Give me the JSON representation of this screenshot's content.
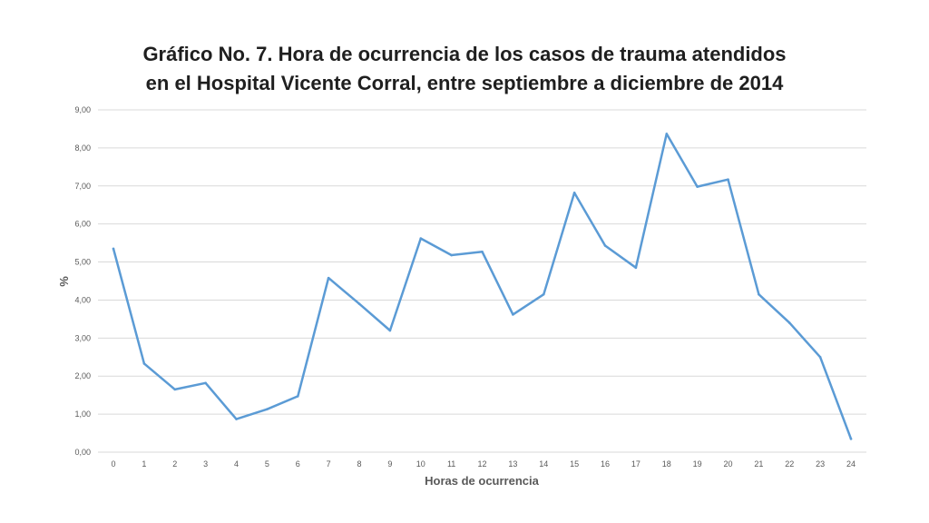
{
  "chart_data": {
    "type": "line",
    "title_lines": [
      "Gráfico No. 7. Hora de ocurrencia de los casos de trauma atendidos",
      "en el Hospital Vicente Corral, entre septiembre a diciembre de 2014"
    ],
    "xlabel": "Horas de ocurrencia",
    "ylabel": "%",
    "x": [
      0,
      1,
      2,
      3,
      4,
      5,
      6,
      7,
      8,
      9,
      10,
      11,
      12,
      13,
      14,
      15,
      16,
      17,
      18,
      19,
      20,
      21,
      22,
      23,
      24
    ],
    "y_tick_labels": [
      "0,00",
      "1,00",
      "2,00",
      "3,00",
      "4,00",
      "5,00",
      "6,00",
      "7,00",
      "8,00",
      "9,00"
    ],
    "ylim": [
      0,
      9
    ],
    "grid": true,
    "legend": "none",
    "series": [
      {
        "color": "#5b9bd5",
        "values": [
          5.35,
          2.33,
          1.65,
          1.82,
          0.87,
          1.13,
          1.47,
          4.58,
          3.9,
          3.2,
          5.62,
          5.18,
          5.27,
          3.62,
          4.15,
          6.82,
          5.43,
          4.85,
          8.37,
          6.98,
          7.17,
          4.15,
          3.4,
          2.5,
          0.35
        ]
      }
    ],
    "colors": {
      "gridline": "#d9d9d9",
      "text": "#595959",
      "title": "#1f1f1f"
    }
  }
}
